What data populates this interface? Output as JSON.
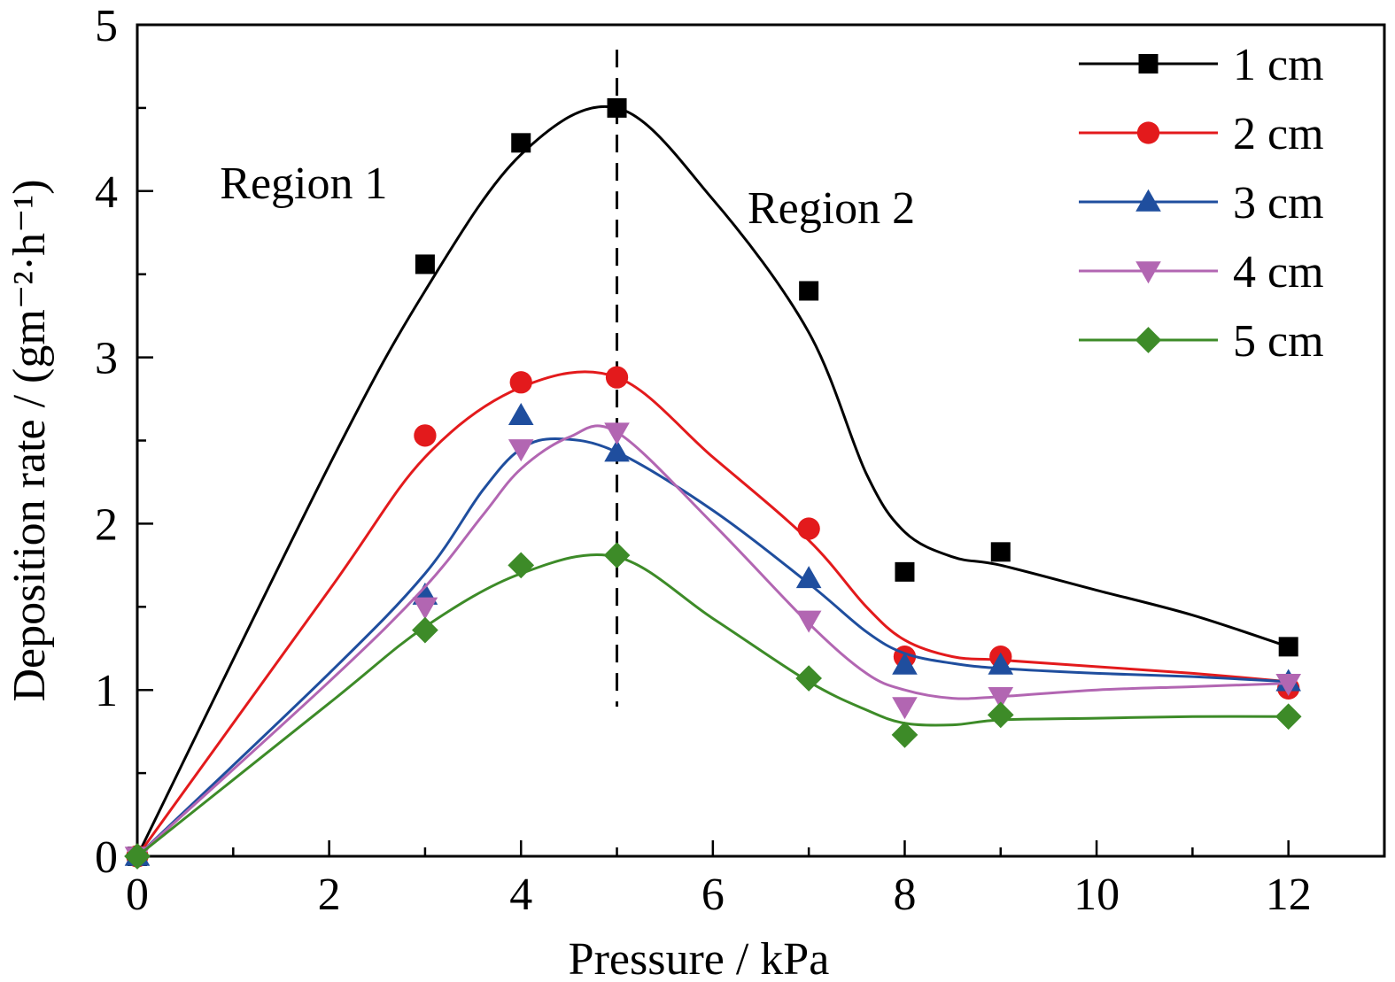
{
  "chart_data": {
    "type": "line",
    "xlabel": "Pressure / kPa",
    "ylabel": "Deposition rate / (gm⁻²·h⁻¹)",
    "xlim": [
      0,
      13
    ],
    "ylim": [
      0,
      5
    ],
    "x_ticks": [
      0,
      2,
      4,
      6,
      8,
      10,
      12
    ],
    "y_ticks": [
      0,
      1,
      2,
      3,
      4,
      5
    ],
    "x_tick_labels": [
      "0",
      "2",
      "4",
      "6",
      "8",
      "10",
      "12"
    ],
    "y_tick_labels": [
      "0",
      "1",
      "2",
      "3",
      "4",
      "5"
    ],
    "grid": false,
    "legend_position": "top-right",
    "annotations": [
      {
        "text": "Region 1",
        "x": 2.2,
        "y": 4.0
      },
      {
        "text": "Region 2",
        "x": 7.7,
        "y": 3.85
      }
    ],
    "reference_line": {
      "x": 5,
      "y_range": [
        0.9,
        4.85
      ],
      "style": "dashed"
    },
    "series": [
      {
        "name": "1 cm",
        "color": "#000000",
        "marker": "square",
        "points": [
          [
            0,
            0
          ],
          [
            3,
            3.56
          ],
          [
            4,
            4.29
          ],
          [
            5,
            4.5
          ],
          [
            7,
            3.4
          ],
          [
            8,
            1.71
          ],
          [
            9,
            1.83
          ],
          [
            12,
            1.26
          ]
        ],
        "curve": [
          [
            0,
            0
          ],
          [
            2,
            2.35
          ],
          [
            3,
            3.4
          ],
          [
            4,
            4.22
          ],
          [
            5,
            4.5
          ],
          [
            6,
            3.95
          ],
          [
            7,
            3.15
          ],
          [
            7.6,
            2.3
          ],
          [
            8,
            1.95
          ],
          [
            8.5,
            1.8
          ],
          [
            9,
            1.75
          ],
          [
            10,
            1.6
          ],
          [
            11,
            1.45
          ],
          [
            12,
            1.26
          ]
        ]
      },
      {
        "name": "2 cm",
        "color": "#e31a1c",
        "marker": "circle",
        "points": [
          [
            0,
            0
          ],
          [
            3,
            2.53
          ],
          [
            4,
            2.85
          ],
          [
            5,
            2.88
          ],
          [
            7,
            1.97
          ],
          [
            8,
            1.2
          ],
          [
            9,
            1.2
          ],
          [
            12,
            1.01
          ]
        ],
        "curve": [
          [
            0,
            0
          ],
          [
            2,
            1.6
          ],
          [
            3,
            2.4
          ],
          [
            4,
            2.82
          ],
          [
            5,
            2.88
          ],
          [
            6,
            2.4
          ],
          [
            7,
            1.9
          ],
          [
            7.6,
            1.5
          ],
          [
            8,
            1.3
          ],
          [
            8.5,
            1.2
          ],
          [
            9,
            1.18
          ],
          [
            10,
            1.14
          ],
          [
            11,
            1.1
          ],
          [
            12,
            1.05
          ]
        ]
      },
      {
        "name": "3 cm",
        "color": "#1f4e9e",
        "marker": "triangle-up",
        "points": [
          [
            0,
            0
          ],
          [
            3,
            1.57
          ],
          [
            4,
            2.65
          ],
          [
            5,
            2.43
          ],
          [
            7,
            1.67
          ],
          [
            8,
            1.15
          ],
          [
            9,
            1.15
          ],
          [
            12,
            1.05
          ]
        ],
        "curve": [
          [
            0,
            0
          ],
          [
            2,
            1.1
          ],
          [
            3,
            1.7
          ],
          [
            3.6,
            2.2
          ],
          [
            4,
            2.45
          ],
          [
            4.4,
            2.51
          ],
          [
            5,
            2.43
          ],
          [
            6,
            2.08
          ],
          [
            7,
            1.64
          ],
          [
            7.6,
            1.35
          ],
          [
            8,
            1.22
          ],
          [
            8.5,
            1.16
          ],
          [
            9,
            1.13
          ],
          [
            10,
            1.1
          ],
          [
            11,
            1.08
          ],
          [
            12,
            1.05
          ]
        ]
      },
      {
        "name": "4 cm",
        "color": "#b266b2",
        "marker": "triangle-down",
        "points": [
          [
            0,
            0
          ],
          [
            3,
            1.5
          ],
          [
            4,
            2.45
          ],
          [
            5,
            2.55
          ],
          [
            7,
            1.42
          ],
          [
            8,
            0.9
          ],
          [
            9,
            0.96
          ],
          [
            12,
            1.04
          ]
        ],
        "curve": [
          [
            0,
            0
          ],
          [
            2,
            1.05
          ],
          [
            3,
            1.62
          ],
          [
            3.6,
            2.05
          ],
          [
            4,
            2.33
          ],
          [
            4.5,
            2.52
          ],
          [
            5,
            2.55
          ],
          [
            6,
            2.0
          ],
          [
            7,
            1.4
          ],
          [
            7.6,
            1.1
          ],
          [
            8,
            1.0
          ],
          [
            8.5,
            0.95
          ],
          [
            9,
            0.96
          ],
          [
            10,
            1.0
          ],
          [
            11,
            1.02
          ],
          [
            12,
            1.04
          ]
        ]
      },
      {
        "name": "5 cm",
        "color": "#3d8b28",
        "marker": "diamond",
        "points": [
          [
            0,
            0
          ],
          [
            3,
            1.36
          ],
          [
            4,
            1.75
          ],
          [
            5,
            1.81
          ],
          [
            7,
            1.07
          ],
          [
            8,
            0.73
          ],
          [
            9,
            0.85
          ],
          [
            12,
            0.84
          ]
        ],
        "curve": [
          [
            0,
            0
          ],
          [
            2,
            0.92
          ],
          [
            3,
            1.38
          ],
          [
            4,
            1.7
          ],
          [
            5,
            1.8
          ],
          [
            6,
            1.43
          ],
          [
            7,
            1.05
          ],
          [
            7.6,
            0.88
          ],
          [
            8,
            0.8
          ],
          [
            8.5,
            0.79
          ],
          [
            9,
            0.82
          ],
          [
            10,
            0.83
          ],
          [
            11,
            0.84
          ],
          [
            12,
            0.84
          ]
        ]
      }
    ]
  }
}
